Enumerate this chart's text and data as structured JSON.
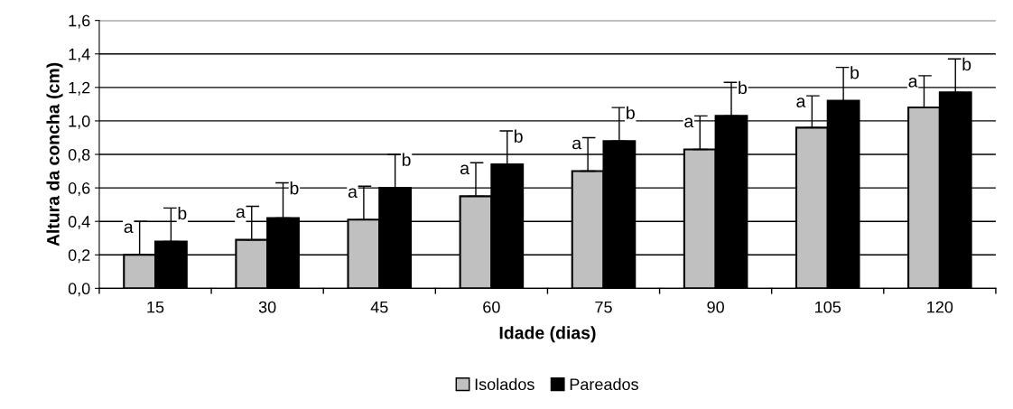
{
  "chart_data": {
    "type": "bar",
    "xlabel": "Idade (dias)",
    "ylabel": "Altura da concha (cm)",
    "categories": [
      "15",
      "30",
      "45",
      "60",
      "75",
      "90",
      "105",
      "120"
    ],
    "series": [
      {
        "name": "Isolados",
        "color": "#c0c0c0",
        "values": [
          0.2,
          0.29,
          0.41,
          0.55,
          0.7,
          0.83,
          0.96,
          1.08
        ],
        "errors": [
          [
            0.2,
            0.4
          ],
          [
            0.29,
            0.49
          ],
          [
            0.41,
            0.61
          ],
          [
            0.55,
            0.75
          ],
          [
            0.7,
            0.9
          ],
          [
            0.83,
            1.03
          ],
          [
            0.96,
            1.15
          ],
          [
            1.08,
            1.27
          ]
        ],
        "value_labels": [
          "a",
          "a",
          "a",
          "a",
          "a",
          "a",
          "a",
          "a"
        ]
      },
      {
        "name": "Pareados",
        "color": "#000000",
        "values": [
          0.28,
          0.42,
          0.6,
          0.74,
          0.88,
          1.03,
          1.12,
          1.17
        ],
        "errors": [
          [
            0.28,
            0.48
          ],
          [
            0.42,
            0.63
          ],
          [
            0.6,
            0.8
          ],
          [
            0.74,
            0.94
          ],
          [
            0.88,
            1.08
          ],
          [
            1.03,
            1.23
          ],
          [
            1.12,
            1.32
          ],
          [
            1.17,
            1.37
          ]
        ],
        "value_labels": [
          "b",
          "b",
          "b",
          "b",
          "b",
          "b",
          "b",
          "b"
        ]
      }
    ],
    "ylim": [
      0,
      1.6
    ],
    "yticks": [
      {
        "value": 0,
        "label": "0,0"
      },
      {
        "value": 0.2,
        "label": "0,2"
      },
      {
        "value": 0.4,
        "label": "0,4"
      },
      {
        "value": 0.6,
        "label": "0,6"
      },
      {
        "value": 0.8,
        "label": "0,8"
      },
      {
        "value": 1.0,
        "label": "1,0"
      },
      {
        "value": 1.2,
        "label": "1,2"
      },
      {
        "value": 1.4,
        "label": "1,4"
      },
      {
        "value": 1.6,
        "label": "1,6"
      }
    ],
    "grid": "y",
    "legend": "bottom"
  }
}
